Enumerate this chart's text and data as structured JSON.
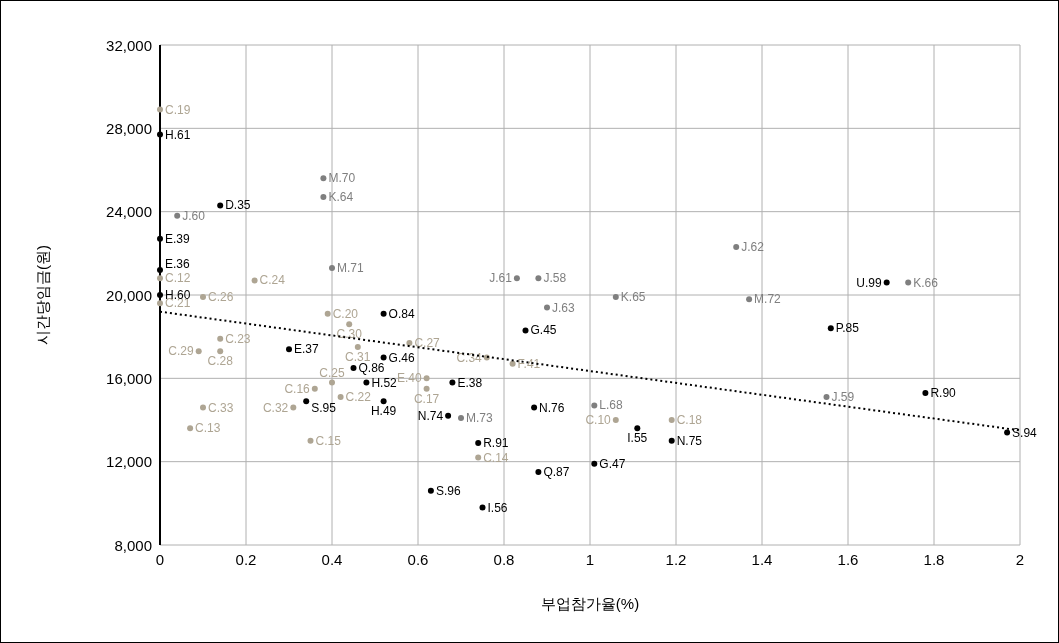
{
  "chart_data": {
    "type": "scatter",
    "xlabel": "부업참가율(%)",
    "ylabel": "시간당임금(원)",
    "xlim": [
      0,
      2
    ],
    "xticks": [
      0,
      0.2,
      0.4,
      0.6,
      0.8,
      1,
      1.2,
      1.4,
      1.6,
      1.8,
      2
    ],
    "ylim": [
      8000,
      32000
    ],
    "yticks": [
      {
        "value": 8000,
        "label": "8,000"
      },
      {
        "value": 12000,
        "label": "12,000"
      },
      {
        "value": 16000,
        "label": "16,000"
      },
      {
        "value": 20000,
        "label": "20,000"
      },
      {
        "value": 24000,
        "label": "24,000"
      },
      {
        "value": 28000,
        "label": "28,000"
      },
      {
        "value": 32000,
        "label": "32,000"
      }
    ],
    "grid": true,
    "marker": "circle",
    "series": [
      {
        "color": "#aea593",
        "x": [
          0,
          0,
          0,
          0.1,
          0.22,
          0.39,
          0.44,
          0.14,
          0.09,
          0.14,
          0.46,
          0.58,
          0.4,
          0.36,
          0.42,
          0.31,
          0.1,
          0.07,
          0.35,
          0.62,
          0.62,
          0.76,
          0.82,
          0.74,
          1.06,
          1.19
        ],
        "values": [
          28900,
          20800,
          19600,
          19900,
          20700,
          19100,
          18600,
          17900,
          17300,
          17300,
          17500,
          17700,
          15800,
          15500,
          15100,
          14600,
          14600,
          13600,
          13000,
          16000,
          15500,
          17000,
          16700,
          12200,
          14000,
          14000
        ],
        "value_labels": [
          "C.19",
          "C.12",
          "C.21",
          "C.26",
          "C.24",
          "C.20",
          "C.30",
          "C.23",
          "C.29",
          "C.28",
          "C.31",
          "C.27",
          "C.25",
          "C.16",
          "C.22",
          "C.32",
          "C.33",
          "C.13",
          "C.15",
          "E.40",
          "C.17",
          "C.34",
          "F.41",
          "C.14",
          "C.10",
          "C.18"
        ]
      },
      {
        "color": "#7f7f7f",
        "x": [
          0.04,
          0.38,
          0.38,
          0.4,
          0.83,
          0.88,
          0.9,
          1.06,
          1.34,
          1.37,
          1.74,
          1.55,
          1.01,
          0.7
        ],
        "values": [
          23800,
          25600,
          24700,
          21300,
          20800,
          20800,
          19400,
          19900,
          22300,
          19800,
          20600,
          15100,
          14700,
          14100
        ],
        "value_labels": [
          "J.60",
          "M.70",
          "K.64",
          "M.71",
          "J.61",
          "J.58",
          "J.63",
          "K.65",
          "J.62",
          "M.72",
          "K.66",
          "J.59",
          "L.68",
          "M.73"
        ]
      },
      {
        "color": "#000000",
        "x": [
          0,
          0,
          0,
          0,
          0.14,
          0.3,
          0.52,
          0.52,
          0.45,
          0.48,
          0.52,
          0.34,
          0.68,
          0.67,
          0.74,
          0.63,
          0.75,
          0.88,
          0.87,
          0.85,
          1.01,
          1.11,
          1.19,
          1.56,
          1.69,
          1.78,
          1.97
        ],
        "values": [
          27700,
          22700,
          21200,
          20000,
          24300,
          17400,
          19100,
          17000,
          16500,
          15800,
          14900,
          14900,
          15800,
          14200,
          12900,
          10600,
          9800,
          11500,
          14600,
          18300,
          11900,
          13600,
          13000,
          18400,
          20600,
          15300,
          13400
        ],
        "value_labels": [
          "H.61",
          "E.39",
          "E.36",
          "H.60",
          "D.35",
          "E.37",
          "O.84",
          "G.46",
          "Q.86",
          "H.52",
          "H.49",
          "S.95",
          "E.38",
          "N.74",
          "R.91",
          "S.96",
          "I.56",
          "Q.87",
          "N.76",
          "G.45",
          "G.47",
          "I.55",
          "N.75",
          "P.85",
          "U.99",
          "R.90",
          "S.94"
        ]
      },
      {
        "type": "line",
        "color": "#000000",
        "marker": "none",
        "line_style": "dotted",
        "x": [
          0,
          2
        ],
        "values": [
          19200,
          13500
        ]
      }
    ]
  }
}
